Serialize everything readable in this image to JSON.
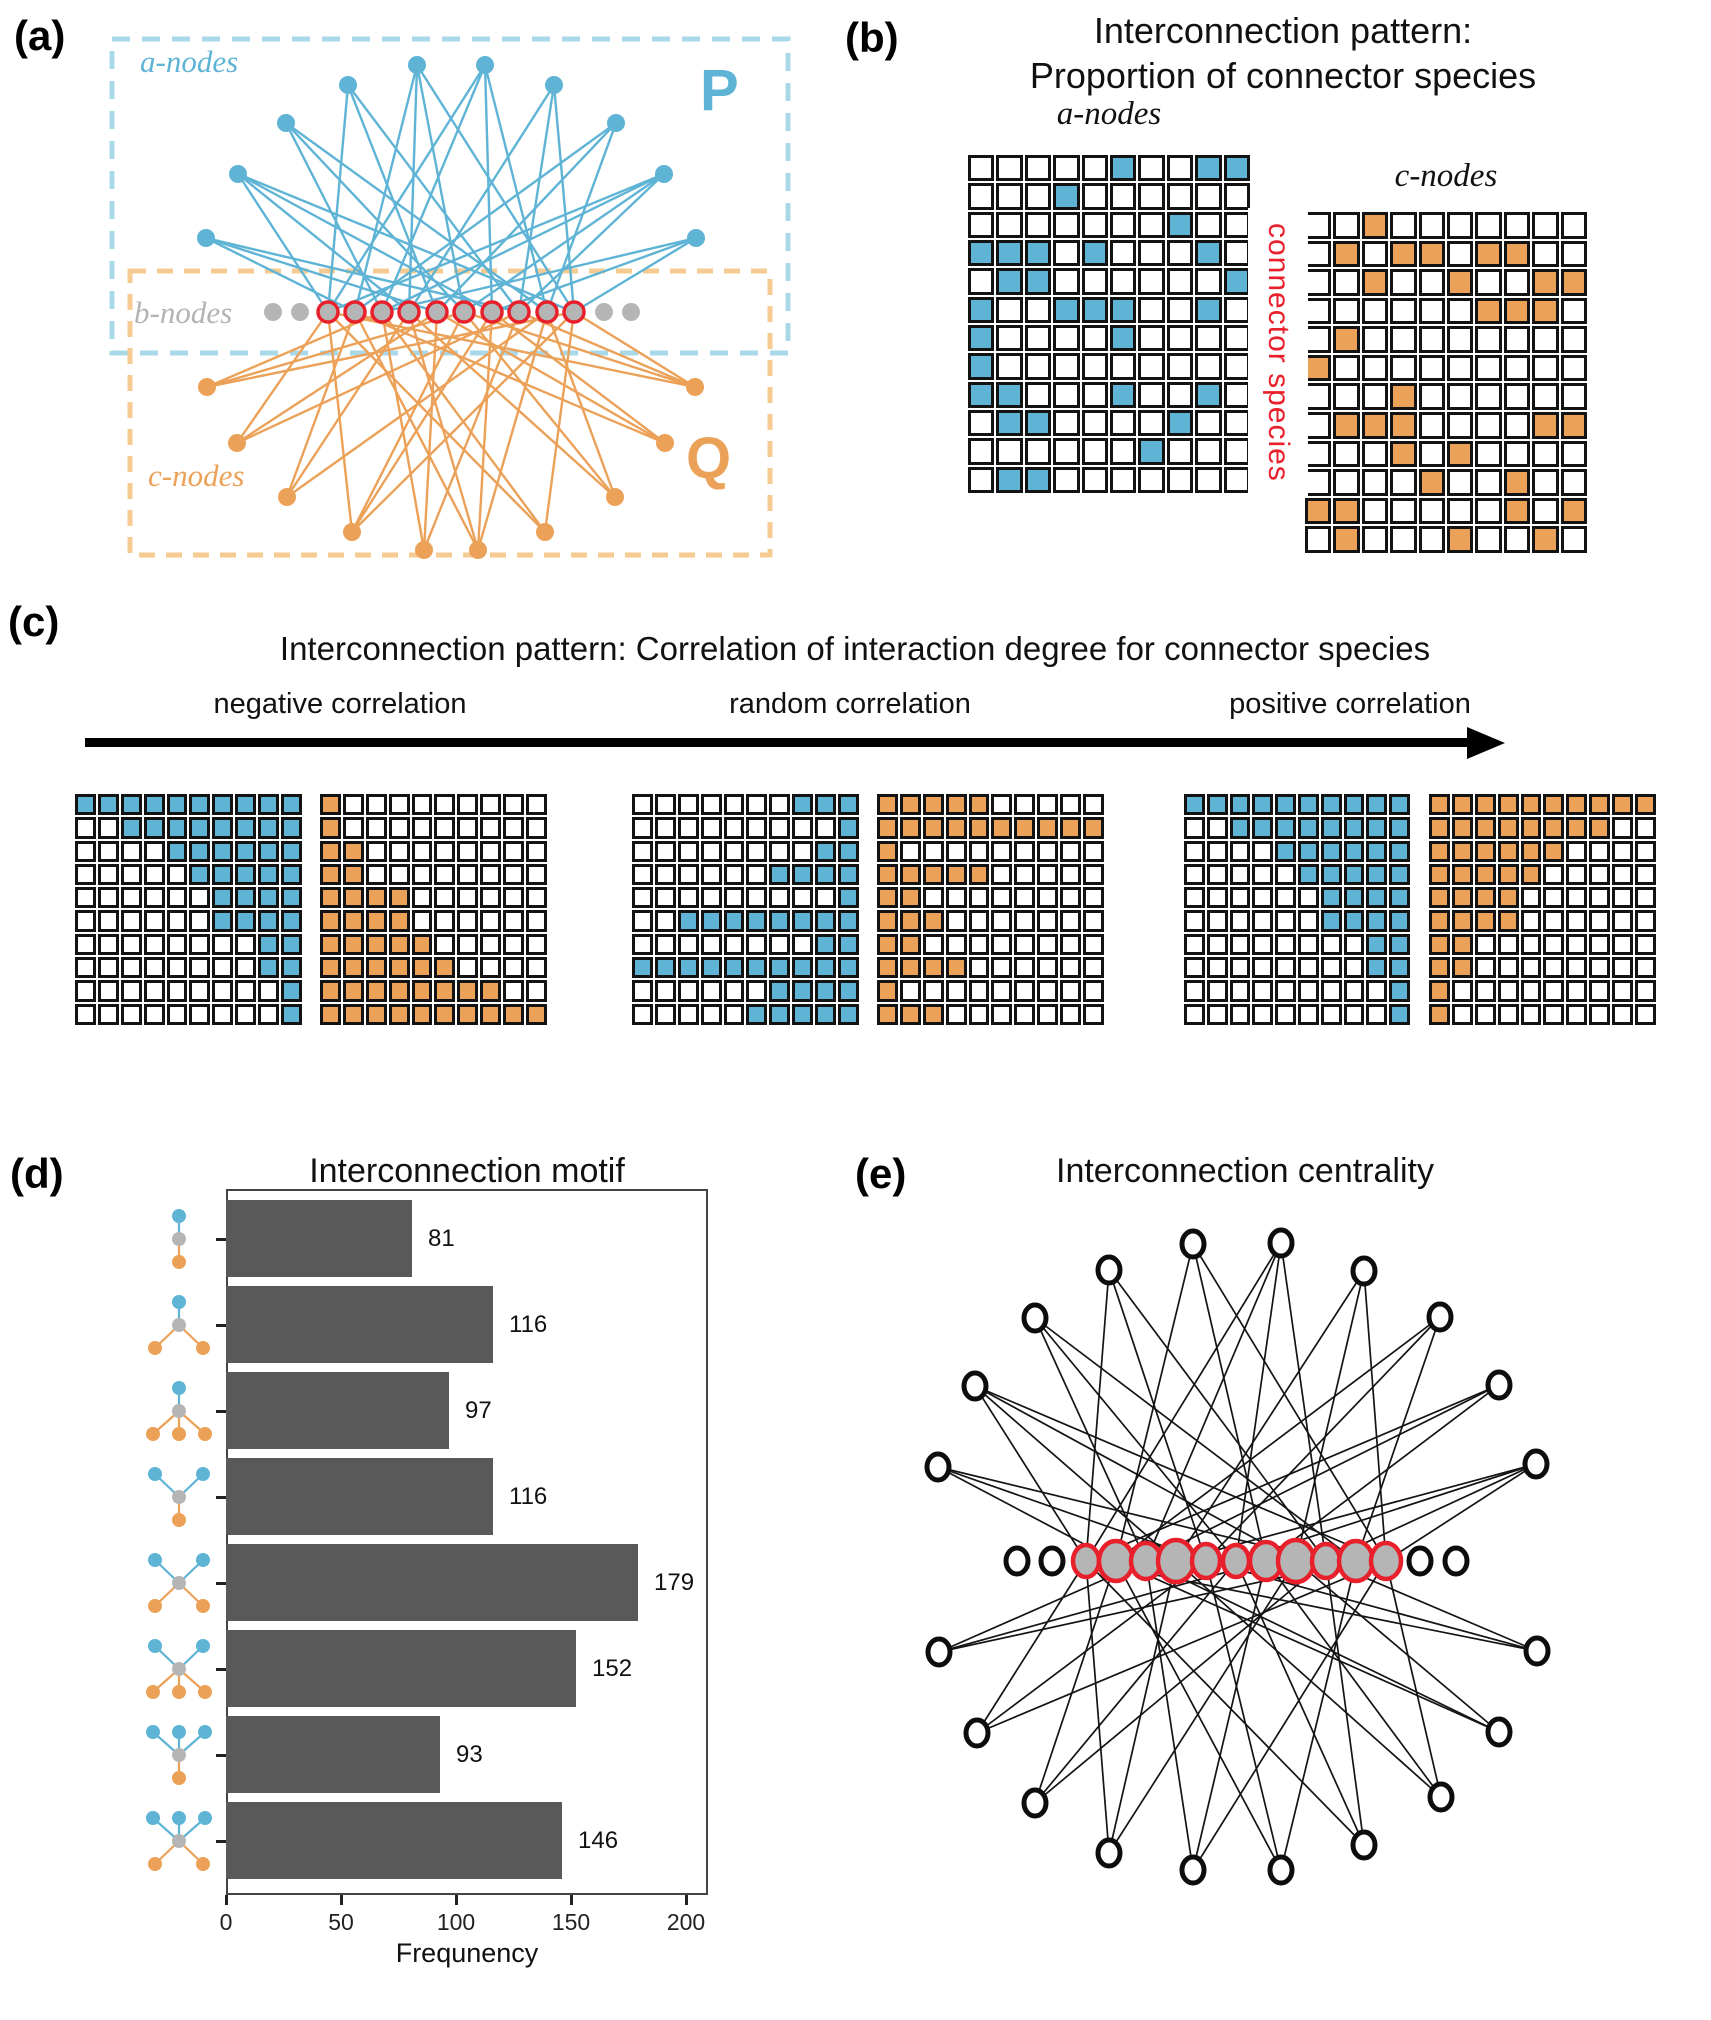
{
  "colors": {
    "blue": "#5FB4D5",
    "orange": "#EBA158",
    "red": "#E8202B",
    "gray": "#B5B5B5",
    "gray_text": "#B3B3B3",
    "blue_dash": "#A9D9E9",
    "orange_dash": "#F6CB92",
    "bar": "#595959",
    "black": "#141414"
  },
  "panel_a": {
    "label": "(a)",
    "a_label": "a-nodes",
    "b_label": "b-nodes",
    "c_label": "c-nodes",
    "p_label": "P",
    "q_label": "Q",
    "a_nodes": [
      [
        206,
        238
      ],
      [
        238,
        174
      ],
      [
        286,
        123
      ],
      [
        348,
        85
      ],
      [
        417,
        65
      ],
      [
        485,
        65
      ],
      [
        554,
        85
      ],
      [
        616,
        123
      ],
      [
        664,
        174
      ],
      [
        696,
        238
      ]
    ],
    "b_plain": [
      [
        273,
        312
      ],
      [
        300,
        312
      ],
      [
        604,
        312
      ],
      [
        631,
        312
      ]
    ],
    "b_connectors_x": [
      328,
      355,
      382,
      409,
      437,
      464,
      492,
      519,
      547,
      574
    ],
    "b_y": 312,
    "c_nodes": [
      [
        207,
        387
      ],
      [
        237,
        443
      ],
      [
        287,
        497
      ],
      [
        352,
        532
      ],
      [
        424,
        550
      ],
      [
        478,
        550
      ],
      [
        545,
        532
      ],
      [
        615,
        497
      ],
      [
        665,
        443
      ],
      [
        695,
        387
      ]
    ],
    "blue_edges": [
      [
        0,
        1
      ],
      [
        0,
        4
      ],
      [
        0,
        7
      ],
      [
        1,
        0
      ],
      [
        1,
        3
      ],
      [
        1,
        6
      ],
      [
        1,
        9
      ],
      [
        2,
        2
      ],
      [
        2,
        5
      ],
      [
        2,
        8
      ],
      [
        3,
        0
      ],
      [
        3,
        4
      ],
      [
        3,
        7
      ],
      [
        4,
        1
      ],
      [
        4,
        3
      ],
      [
        4,
        5
      ],
      [
        4,
        9
      ],
      [
        5,
        0
      ],
      [
        5,
        2
      ],
      [
        5,
        6
      ],
      [
        5,
        8
      ],
      [
        6,
        3
      ],
      [
        6,
        7
      ],
      [
        6,
        9
      ],
      [
        7,
        1
      ],
      [
        7,
        4
      ],
      [
        7,
        8
      ],
      [
        8,
        0
      ],
      [
        8,
        2
      ],
      [
        8,
        5
      ],
      [
        8,
        7
      ],
      [
        9,
        2
      ],
      [
        9,
        6
      ],
      [
        9,
        9
      ]
    ],
    "orange_edges": [
      [
        0,
        2
      ],
      [
        0,
        5
      ],
      [
        0,
        9
      ],
      [
        1,
        0
      ],
      [
        1,
        4
      ],
      [
        1,
        7
      ],
      [
        2,
        1
      ],
      [
        2,
        3
      ],
      [
        2,
        8
      ],
      [
        3,
        0
      ],
      [
        3,
        5
      ],
      [
        3,
        6
      ],
      [
        3,
        9
      ],
      [
        4,
        2
      ],
      [
        4,
        4
      ],
      [
        4,
        7
      ],
      [
        5,
        1
      ],
      [
        5,
        3
      ],
      [
        5,
        6
      ],
      [
        5,
        8
      ],
      [
        6,
        0
      ],
      [
        6,
        2
      ],
      [
        6,
        9
      ],
      [
        7,
        3
      ],
      [
        7,
        5
      ],
      [
        7,
        8
      ],
      [
        8,
        1
      ],
      [
        8,
        4
      ],
      [
        8,
        6
      ],
      [
        9,
        0
      ],
      [
        9,
        5
      ],
      [
        9,
        7
      ],
      [
        9,
        9
      ]
    ],
    "p_box": [
      112,
      39,
      676,
      314
    ],
    "q_box": [
      130,
      271,
      640,
      284
    ]
  },
  "panel_b": {
    "label": "(b)",
    "title_line1": "Interconnection pattern:",
    "title_line2": "Proportion of connector species",
    "a_label": "a-nodes",
    "c_label": "c-nodes",
    "connector_label": "connector species",
    "a_matrix": [
      "0000010011",
      "0001000000",
      "0000000100",
      "1110100010",
      "0110000001",
      "1001110010",
      "1000010000",
      "1000000000",
      "1100010010",
      "0110000100",
      "0000001000",
      "0110000000"
    ],
    "c_matrix": [
      "0010000000",
      "0101101100",
      "0010010011",
      "0000001110",
      "0100000000",
      "1000000000",
      "0001000000",
      "0111000011",
      "0001010000",
      "0000100100",
      "1100000101",
      "0100010010"
    ]
  },
  "panel_c": {
    "label": "(c)",
    "title": "Interconnection pattern: Correlation of interaction degree for connector species",
    "neg_label": "negative correlation",
    "rand_label": "random correlation",
    "pos_label": "positive correlation",
    "neg_a": [
      "1111111111",
      "0011111111",
      "0000111111",
      "0000011111",
      "0000001111",
      "0000001111",
      "0000000011",
      "0000000011",
      "0000000001",
      "0000000001"
    ],
    "neg_c": [
      "1000000000",
      "1000000000",
      "1100000000",
      "1100000000",
      "1111000000",
      "1111000000",
      "1111100000",
      "1111110000",
      "1111111100",
      "1111111111"
    ],
    "rand_a": [
      "0000000111",
      "0000000001",
      "0000000011",
      "0000001111",
      "0000000001",
      "0011111111",
      "0000000011",
      "1111111111",
      "0000001111",
      "0000011111"
    ],
    "rand_c": [
      "1111100000",
      "1111111111",
      "1000000000",
      "1111100000",
      "1100000000",
      "1110000000",
      "1100000000",
      "1111000000",
      "1000000000",
      "1110000000"
    ],
    "pos_a": [
      "1111111111",
      "0011111111",
      "0000111111",
      "0000011111",
      "0000001111",
      "0000001111",
      "0000000011",
      "0000000011",
      "0000000001",
      "0000000001"
    ],
    "pos_c": [
      "1111111111",
      "1111111100",
      "1111110000",
      "1111100000",
      "1111000000",
      "1111000000",
      "1100000000",
      "1100000000",
      "1000000000",
      "1000000000"
    ]
  },
  "panel_d": {
    "label": "(d)",
    "title": "Interconnection motif",
    "xlabel": "Frequnency",
    "x_ticks": [
      0,
      50,
      100,
      150,
      200
    ],
    "values": [
      81,
      116,
      97,
      116,
      179,
      152,
      93,
      146
    ],
    "motifs": [
      [
        1,
        1
      ],
      [
        1,
        2
      ],
      [
        1,
        3
      ],
      [
        2,
        1
      ],
      [
        2,
        2
      ],
      [
        2,
        3
      ],
      [
        3,
        1
      ],
      [
        3,
        2
      ]
    ]
  },
  "panel_e": {
    "label": "(e)",
    "title": "Interconnection centrality",
    "top_nodes": [
      [
        38,
        267
      ],
      [
        75,
        186
      ],
      [
        135,
        118
      ],
      [
        209,
        70
      ],
      [
        293,
        44
      ],
      [
        381,
        43
      ],
      [
        464,
        71
      ],
      [
        540,
        117
      ],
      [
        599,
        185
      ],
      [
        636,
        264
      ]
    ],
    "mid_plain": [
      [
        117,
        361
      ],
      [
        152,
        361
      ],
      [
        520,
        361
      ],
      [
        556,
        361
      ]
    ],
    "mid_connectors": [
      [
        186,
        361,
        13
      ],
      [
        216,
        361,
        17
      ],
      [
        246,
        361,
        15
      ],
      [
        276,
        361,
        18
      ],
      [
        306,
        361,
        14
      ],
      [
        336,
        361,
        13
      ],
      [
        366,
        361,
        16
      ],
      [
        396,
        361,
        18
      ],
      [
        426,
        361,
        14
      ],
      [
        456,
        361,
        17
      ],
      [
        486,
        361,
        15
      ]
    ],
    "bottom_nodes": [
      [
        39,
        452
      ],
      [
        77,
        533
      ],
      [
        135,
        603
      ],
      [
        209,
        653
      ],
      [
        293,
        670
      ],
      [
        381,
        670
      ],
      [
        464,
        645
      ],
      [
        541,
        597
      ],
      [
        599,
        532
      ],
      [
        637,
        451
      ]
    ],
    "top_edges": [
      [
        0,
        1
      ],
      [
        0,
        4
      ],
      [
        0,
        8
      ],
      [
        1,
        0
      ],
      [
        1,
        3
      ],
      [
        1,
        7
      ],
      [
        1,
        10
      ],
      [
        2,
        2
      ],
      [
        2,
        5
      ],
      [
        2,
        9
      ],
      [
        3,
        0
      ],
      [
        3,
        4
      ],
      [
        3,
        8
      ],
      [
        4,
        1
      ],
      [
        4,
        6
      ],
      [
        4,
        10
      ],
      [
        5,
        0
      ],
      [
        5,
        2
      ],
      [
        5,
        5
      ],
      [
        5,
        8
      ],
      [
        6,
        3
      ],
      [
        6,
        7
      ],
      [
        6,
        10
      ],
      [
        7,
        1
      ],
      [
        7,
        4
      ],
      [
        7,
        9
      ],
      [
        8,
        0
      ],
      [
        8,
        2
      ],
      [
        8,
        6
      ],
      [
        9,
        3
      ],
      [
        9,
        5
      ],
      [
        9,
        8
      ],
      [
        9,
        10
      ]
    ],
    "bottom_edges": [
      [
        0,
        2
      ],
      [
        0,
        6
      ],
      [
        0,
        9
      ],
      [
        1,
        0
      ],
      [
        1,
        4
      ],
      [
        1,
        10
      ],
      [
        2,
        1
      ],
      [
        2,
        5
      ],
      [
        2,
        8
      ],
      [
        3,
        0
      ],
      [
        3,
        3
      ],
      [
        3,
        7
      ],
      [
        4,
        2
      ],
      [
        4,
        6
      ],
      [
        4,
        10
      ],
      [
        5,
        1
      ],
      [
        5,
        4
      ],
      [
        5,
        9
      ],
      [
        6,
        0
      ],
      [
        6,
        5
      ],
      [
        6,
        8
      ],
      [
        7,
        3
      ],
      [
        7,
        6
      ],
      [
        7,
        10
      ],
      [
        8,
        1
      ],
      [
        8,
        2
      ],
      [
        8,
        7
      ],
      [
        9,
        0
      ],
      [
        9,
        4
      ],
      [
        9,
        8
      ]
    ]
  },
  "chart_data": {
    "type": "bar",
    "orientation": "horizontal",
    "title": "Interconnection motif",
    "categories": [
      "motif 1a-1c",
      "motif 1a-2c",
      "motif 1a-3c",
      "motif 2a-1c",
      "motif 2a-2c",
      "motif 2a-3c",
      "motif 3a-1c",
      "motif 3a-2c"
    ],
    "values": [
      81,
      116,
      97,
      116,
      179,
      152,
      93,
      146
    ],
    "xlabel": "Frequnency",
    "xlim": [
      0,
      210
    ],
    "x_ticks": [
      0,
      50,
      100,
      150,
      200
    ],
    "bar_color": "#595959",
    "value_labels": true,
    "grid": false,
    "legend": false
  }
}
